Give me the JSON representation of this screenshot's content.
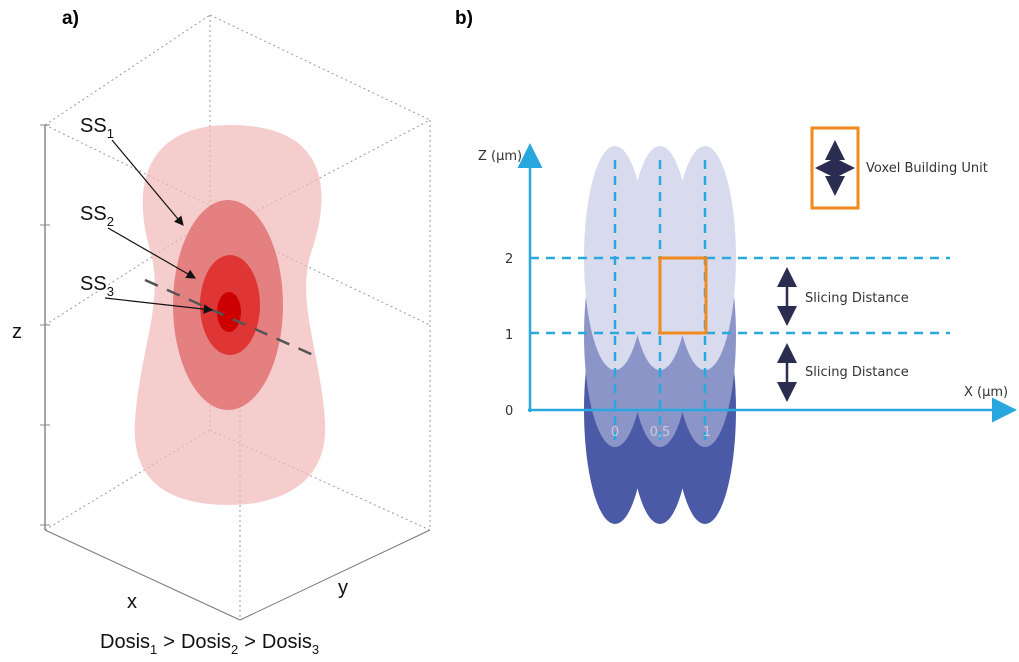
{
  "panel_a": {
    "label": "a)",
    "axes": {
      "z": "z",
      "x": "x",
      "y": "y"
    },
    "surfaces": [
      {
        "name": "SS",
        "sub": "1"
      },
      {
        "name": "SS",
        "sub": "2"
      },
      {
        "name": "SS",
        "sub": "3"
      }
    ],
    "caption": {
      "terms": [
        {
          "name": "Dosis",
          "sub": "1"
        },
        {
          "name": "Dosis",
          "sub": "2"
        },
        {
          "name": "Dosis",
          "sub": "3"
        }
      ],
      "operators": [
        ">",
        ">"
      ]
    }
  },
  "panel_b": {
    "label": "b)",
    "z_axis": {
      "title": "Z (µm)",
      "ticks": [
        "2",
        "1",
        "0"
      ]
    },
    "x_axis": {
      "title": "X (µm)",
      "ticks": [
        "0",
        "0,5",
        "1"
      ]
    },
    "legend": "Voxel Building Unit",
    "annotations": [
      "Slicing Distance",
      "Slicing Distance"
    ]
  }
}
